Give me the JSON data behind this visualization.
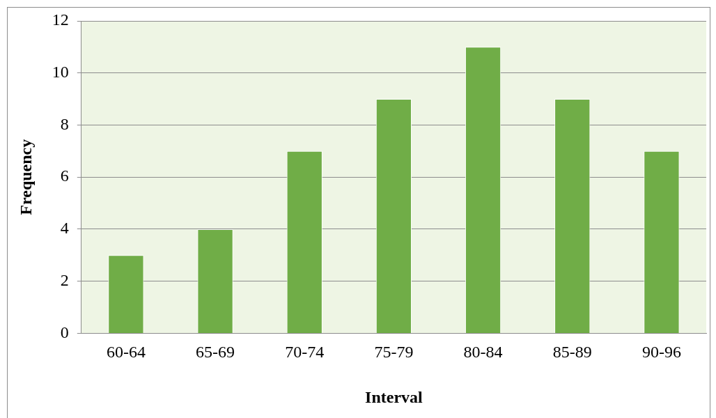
{
  "chart_data": {
    "type": "bar",
    "xlabel": "Interval",
    "ylabel": "Frequency",
    "categories": [
      "60-64",
      "65-69",
      "70-74",
      "75-79",
      "80-84",
      "85-89",
      "90-96"
    ],
    "values": [
      3,
      4,
      7,
      9,
      11,
      9,
      7
    ],
    "color": "#70ad47",
    "ylim": [
      0,
      12
    ],
    "yticks": [
      0,
      2,
      4,
      6,
      8,
      10,
      12
    ],
    "grid": "y"
  }
}
